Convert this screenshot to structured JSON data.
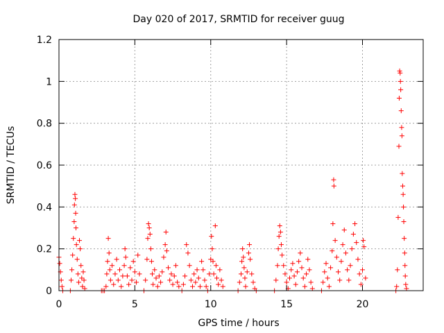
{
  "chart_data": {
    "type": "scatter",
    "title": "Day 020 of 2017, SRMTID for receiver guug",
    "xlabel": "GPS time / hours",
    "ylabel": "SRMTID / TECUs",
    "xlim": [
      0,
      24
    ],
    "ylim": [
      0,
      1.2
    ],
    "grid": true,
    "marker": "+",
    "marker_color": "#ff0000",
    "xticks": [
      {
        "value": 0,
        "label": "0"
      },
      {
        "value": 5,
        "label": "5"
      },
      {
        "value": 10,
        "label": "10"
      },
      {
        "value": 15,
        "label": "15"
      },
      {
        "value": 20,
        "label": "20"
      }
    ],
    "yticks": [
      {
        "value": 0,
        "label": "0"
      },
      {
        "value": 0.2,
        "label": "0.2"
      },
      {
        "value": 0.4,
        "label": "0.4"
      },
      {
        "value": 0.6,
        "label": "0.6"
      },
      {
        "value": 0.8,
        "label": "0.8"
      },
      {
        "value": 1.0,
        "label": "1"
      },
      {
        "value": 1.2,
        "label": "1.2"
      }
    ],
    "series": [
      {
        "values": [
          [
            0.0,
            0.16
          ],
          [
            0.05,
            0.13
          ],
          [
            0.1,
            0.09
          ],
          [
            0.15,
            0.05
          ],
          [
            0.2,
            0.02
          ],
          [
            0.25,
            0.0
          ],
          [
            0.75,
            0.0
          ],
          [
            0.8,
            0.05
          ],
          [
            0.85,
            0.1
          ],
          [
            0.9,
            0.17
          ],
          [
            0.95,
            0.25
          ],
          [
            1.0,
            0.33
          ],
          [
            1.02,
            0.41
          ],
          [
            1.05,
            0.46
          ],
          [
            1.08,
            0.44
          ],
          [
            1.1,
            0.37
          ],
          [
            1.12,
            0.3
          ],
          [
            1.15,
            0.22
          ],
          [
            1.2,
            0.15
          ],
          [
            1.25,
            0.08
          ],
          [
            1.3,
            0.04
          ],
          [
            1.35,
            0.24
          ],
          [
            1.4,
            0.2
          ],
          [
            1.45,
            0.12
          ],
          [
            1.5,
            0.06
          ],
          [
            1.55,
            0.02
          ],
          [
            1.6,
            0.09
          ],
          [
            1.65,
            0.05
          ],
          [
            1.7,
            0.01
          ],
          [
            2.8,
            0.0
          ],
          [
            2.9,
            0.0
          ],
          [
            3.0,
            0.0
          ],
          [
            3.1,
            0.02
          ],
          [
            3.15,
            0.08
          ],
          [
            3.2,
            0.14
          ],
          [
            3.25,
            0.25
          ],
          [
            3.3,
            0.18
          ],
          [
            3.35,
            0.1
          ],
          [
            3.4,
            0.05
          ],
          [
            3.5,
            0.12
          ],
          [
            3.6,
            0.03
          ],
          [
            3.7,
            0.08
          ],
          [
            3.8,
            0.15
          ],
          [
            3.9,
            0.05
          ],
          [
            4.0,
            0.1
          ],
          [
            4.1,
            0.02
          ],
          [
            4.2,
            0.07
          ],
          [
            4.3,
            0.12
          ],
          [
            4.35,
            0.2
          ],
          [
            4.4,
            0.16
          ],
          [
            4.5,
            0.07
          ],
          [
            4.6,
            0.03
          ],
          [
            4.7,
            0.11
          ],
          [
            4.8,
            0.05
          ],
          [
            4.9,
            0.14
          ],
          [
            5.0,
            0.09
          ],
          [
            5.1,
            0.04
          ],
          [
            5.2,
            0.17
          ],
          [
            5.3,
            0.08
          ],
          [
            5.6,
            0.0
          ],
          [
            5.7,
            0.05
          ],
          [
            5.8,
            0.15
          ],
          [
            5.85,
            0.25
          ],
          [
            5.9,
            0.32
          ],
          [
            5.95,
            0.3
          ],
          [
            6.0,
            0.27
          ],
          [
            6.05,
            0.2
          ],
          [
            6.1,
            0.14
          ],
          [
            6.15,
            0.08
          ],
          [
            6.2,
            0.03
          ],
          [
            6.3,
            0.1
          ],
          [
            6.4,
            0.06
          ],
          [
            6.5,
            0.02
          ],
          [
            6.6,
            0.07
          ],
          [
            6.7,
            0.04
          ],
          [
            6.8,
            0.09
          ],
          [
            6.9,
            0.16
          ],
          [
            7.0,
            0.22
          ],
          [
            7.05,
            0.28
          ],
          [
            7.1,
            0.19
          ],
          [
            7.2,
            0.11
          ],
          [
            7.3,
            0.05
          ],
          [
            7.4,
            0.08
          ],
          [
            7.5,
            0.03
          ],
          [
            7.6,
            0.07
          ],
          [
            7.7,
            0.12
          ],
          [
            7.8,
            0.04
          ],
          [
            7.9,
            0.02
          ],
          [
            8.1,
            0.0
          ],
          [
            8.2,
            0.03
          ],
          [
            8.3,
            0.07
          ],
          [
            8.4,
            0.22
          ],
          [
            8.5,
            0.18
          ],
          [
            8.6,
            0.12
          ],
          [
            8.7,
            0.05
          ],
          [
            8.8,
            0.02
          ],
          [
            8.9,
            0.08
          ],
          [
            9.0,
            0.04
          ],
          [
            9.1,
            0.1
          ],
          [
            9.2,
            0.06
          ],
          [
            9.3,
            0.02
          ],
          [
            9.4,
            0.14
          ],
          [
            9.5,
            0.1
          ],
          [
            9.6,
            0.05
          ],
          [
            9.7,
            0.02
          ],
          [
            9.8,
            0.0
          ],
          [
            9.9,
            0.08
          ],
          [
            10.0,
            0.15
          ],
          [
            10.05,
            0.26
          ],
          [
            10.1,
            0.2
          ],
          [
            10.15,
            0.14
          ],
          [
            10.2,
            0.08
          ],
          [
            10.3,
            0.31
          ],
          [
            10.35,
            0.12
          ],
          [
            10.4,
            0.06
          ],
          [
            10.5,
            0.03
          ],
          [
            10.6,
            0.1
          ],
          [
            10.7,
            0.05
          ],
          [
            10.8,
            0.02
          ],
          [
            11.8,
            0.0
          ],
          [
            11.9,
            0.04
          ],
          [
            12.0,
            0.08
          ],
          [
            12.05,
            0.14
          ],
          [
            12.1,
            0.2
          ],
          [
            12.15,
            0.16
          ],
          [
            12.2,
            0.11
          ],
          [
            12.25,
            0.06
          ],
          [
            12.3,
            0.02
          ],
          [
            12.4,
            0.09
          ],
          [
            12.5,
            0.18
          ],
          [
            12.55,
            0.22
          ],
          [
            12.6,
            0.15
          ],
          [
            12.7,
            0.08
          ],
          [
            12.8,
            0.04
          ],
          [
            12.9,
            0.01
          ],
          [
            13.0,
            0.0
          ],
          [
            14.2,
            0.0
          ],
          [
            14.3,
            0.05
          ],
          [
            14.4,
            0.12
          ],
          [
            14.45,
            0.2
          ],
          [
            14.5,
            0.26
          ],
          [
            14.55,
            0.31
          ],
          [
            14.6,
            0.28
          ],
          [
            14.65,
            0.22
          ],
          [
            14.7,
            0.17
          ],
          [
            14.8,
            0.12
          ],
          [
            14.9,
            0.08
          ],
          [
            15.0,
            0.04
          ],
          [
            15.1,
            0.01
          ],
          [
            15.2,
            0.06
          ],
          [
            15.3,
            0.1
          ],
          [
            15.4,
            0.13
          ],
          [
            15.5,
            0.07
          ],
          [
            15.6,
            0.03
          ],
          [
            15.7,
            0.09
          ],
          [
            15.8,
            0.14
          ],
          [
            15.9,
            0.18
          ],
          [
            16.0,
            0.11
          ],
          [
            16.1,
            0.06
          ],
          [
            16.2,
            0.02
          ],
          [
            16.3,
            0.08
          ],
          [
            16.4,
            0.15
          ],
          [
            16.5,
            0.1
          ],
          [
            16.6,
            0.04
          ],
          [
            16.7,
            0.01
          ],
          [
            17.3,
            0.0
          ],
          [
            17.4,
            0.04
          ],
          [
            17.5,
            0.09
          ],
          [
            17.6,
            0.13
          ],
          [
            17.7,
            0.06
          ],
          [
            17.8,
            0.02
          ],
          [
            17.9,
            0.11
          ],
          [
            18.0,
            0.19
          ],
          [
            18.05,
            0.32
          ],
          [
            18.1,
            0.53
          ],
          [
            18.12,
            0.5
          ],
          [
            18.2,
            0.24
          ],
          [
            18.3,
            0.16
          ],
          [
            18.4,
            0.09
          ],
          [
            18.5,
            0.05
          ],
          [
            18.6,
            0.14
          ],
          [
            18.7,
            0.22
          ],
          [
            18.8,
            0.29
          ],
          [
            18.9,
            0.18
          ],
          [
            19.0,
            0.1
          ],
          [
            19.1,
            0.05
          ],
          [
            19.2,
            0.12
          ],
          [
            19.3,
            0.2
          ],
          [
            19.4,
            0.27
          ],
          [
            19.5,
            0.32
          ],
          [
            19.6,
            0.23
          ],
          [
            19.7,
            0.15
          ],
          [
            19.8,
            0.08
          ],
          [
            19.9,
            0.03
          ],
          [
            20.0,
            0.1
          ],
          [
            20.05,
            0.24
          ],
          [
            20.1,
            0.21
          ],
          [
            20.2,
            0.06
          ],
          [
            22.2,
            0.0
          ],
          [
            22.25,
            0.02
          ],
          [
            22.3,
            0.1
          ],
          [
            22.35,
            0.35
          ],
          [
            22.4,
            0.69
          ],
          [
            22.42,
            0.92
          ],
          [
            22.45,
            1.05
          ],
          [
            22.48,
            1.04
          ],
          [
            22.5,
            1.0
          ],
          [
            22.52,
            0.96
          ],
          [
            22.55,
            0.86
          ],
          [
            22.58,
            0.78
          ],
          [
            22.6,
            0.74
          ],
          [
            22.62,
            0.56
          ],
          [
            22.65,
            0.5
          ],
          [
            22.68,
            0.46
          ],
          [
            22.7,
            0.4
          ],
          [
            22.72,
            0.33
          ],
          [
            22.75,
            0.25
          ],
          [
            22.78,
            0.18
          ],
          [
            22.8,
            0.12
          ],
          [
            22.82,
            0.07
          ],
          [
            22.85,
            0.03
          ],
          [
            22.9,
            0.01
          ]
        ]
      }
    ]
  }
}
